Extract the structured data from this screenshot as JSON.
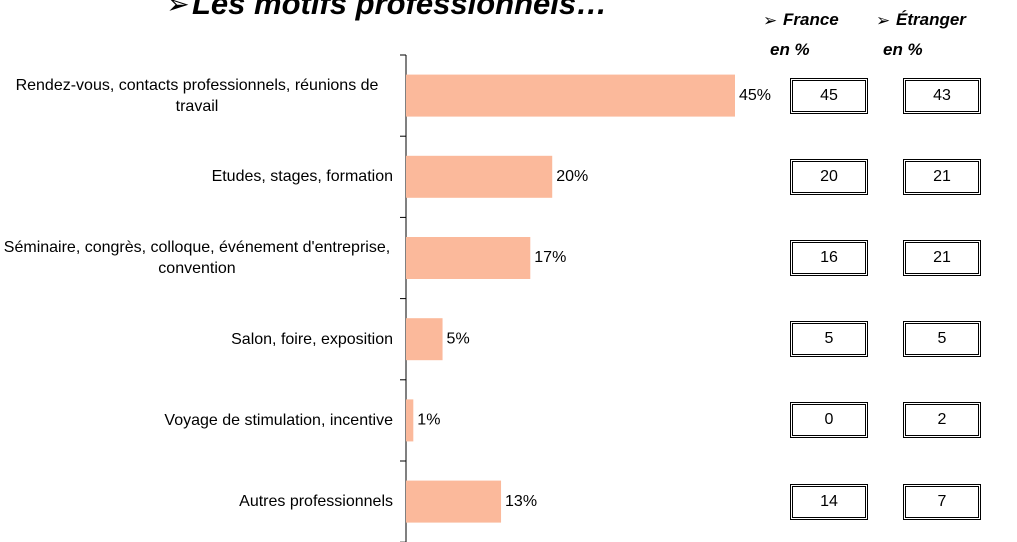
{
  "chart_data": {
    "type": "bar",
    "orientation": "horizontal",
    "title": "Les motifs professionnels…",
    "categories": [
      "Rendez-vous, contacts professionnels, réunions de travail",
      "Etudes, stages, formation",
      "Séminaire, congrès, colloque, événement d'entreprise, convention",
      "Salon, foire, exposition",
      "Voyage de stimulation, incentive",
      "Autres professionnels"
    ],
    "values": [
      45,
      20,
      17,
      5,
      1,
      13
    ],
    "value_labels": [
      "45%",
      "20%",
      "17%",
      "5%",
      "1%",
      "13%"
    ],
    "color": "#fbb99b",
    "columns": [
      {
        "name": "France",
        "unit": "en %",
        "values": [
          45,
          20,
          16,
          5,
          0,
          14
        ]
      },
      {
        "name": "Étranger",
        "unit": "en %",
        "values": [
          43,
          21,
          21,
          5,
          2,
          7
        ]
      }
    ]
  }
}
